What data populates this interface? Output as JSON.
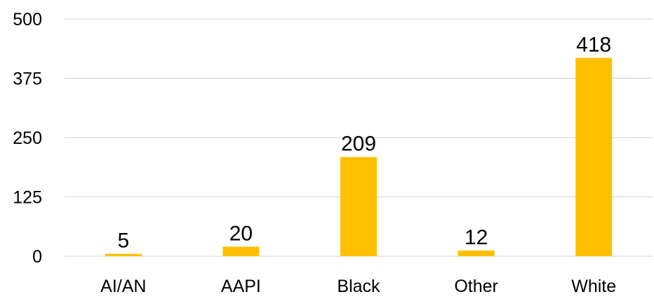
{
  "chart_data": {
    "type": "bar",
    "categories": [
      "AI/AN",
      "AAPI",
      "Black",
      "Other",
      "White"
    ],
    "values": [
      5,
      20,
      209,
      12,
      418
    ],
    "data_labels": [
      "5",
      "20",
      "209",
      "12",
      "418"
    ],
    "y_ticks": [
      0,
      125,
      250,
      375,
      500
    ],
    "y_tick_labels": [
      "0",
      "125",
      "250",
      "375",
      "500"
    ],
    "ylim": [
      0,
      500
    ],
    "grid": true,
    "legend": "none",
    "title": "",
    "xlabel": "",
    "ylabel": "",
    "colors": {
      "bar": "#FFC000",
      "grid": "#D9D9D9",
      "text": "#000000"
    }
  }
}
